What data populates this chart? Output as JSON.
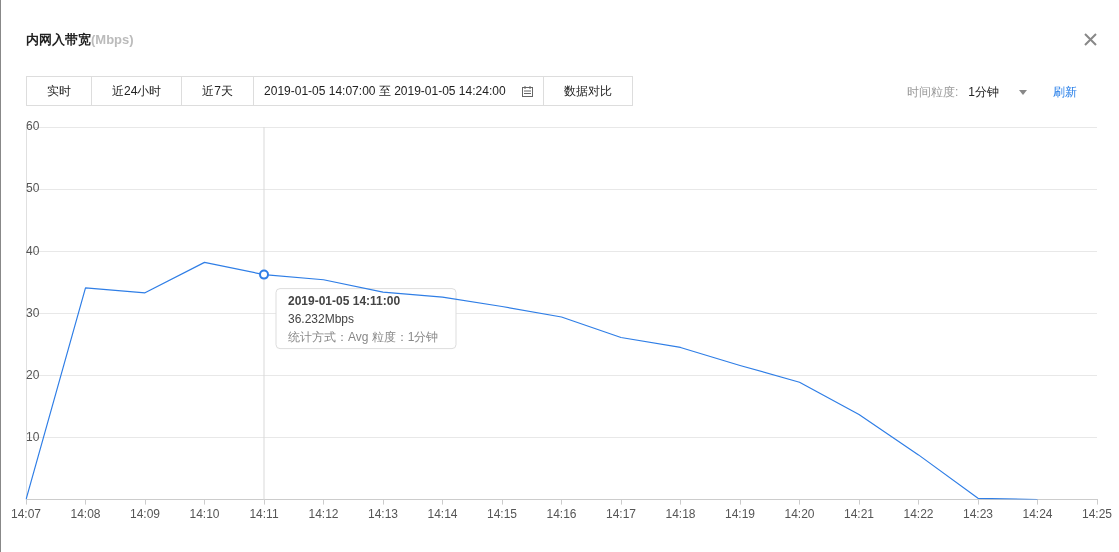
{
  "chart_data": {
    "type": "line",
    "title": "内网入带宽",
    "subtitle": "(Mbps)",
    "categories": [
      "14:07",
      "14:08",
      "14:09",
      "14:10",
      "14:11",
      "14:12",
      "14:13",
      "14:14",
      "14:15",
      "14:16",
      "14:17",
      "14:18",
      "14:19",
      "14:20",
      "14:21",
      "14:22",
      "14:23",
      "14:24",
      "14:25"
    ],
    "series": [
      {
        "color": "#2f7ee6",
        "values": [
          0,
          34.1,
          33.3,
          38.2,
          36.232,
          35.4,
          33.4,
          32.6,
          31.1,
          29.4,
          26.1,
          24.5,
          21.6,
          18.9,
          13.7,
          7.2,
          0.2,
          0,
          null
        ]
      }
    ],
    "ylim": [
      0,
      60
    ],
    "yticks": [
      {
        "value": 0,
        "label": null
      },
      10,
      20,
      30,
      40,
      50,
      60
    ],
    "grid": "y",
    "legend": false,
    "marker": "none",
    "line_style": "solid",
    "ref_lines": [
      {
        "axis": "x",
        "value": "14:11",
        "color": "#d9d9d9"
      }
    ],
    "annotations": [
      {
        "text": "2019-01-05 14:11:00\n36.232Mbps\n统计方式：Avg 粒度：1分钟",
        "x": "14:11",
        "y": 36.232
      },
      "实时",
      "近24小时",
      "近7天",
      "2019-01-05 14:07:00 至 2019-01-05 14:24:00",
      "数据对比",
      "时间粒度:",
      "1分钟",
      "刷新"
    ]
  }
}
